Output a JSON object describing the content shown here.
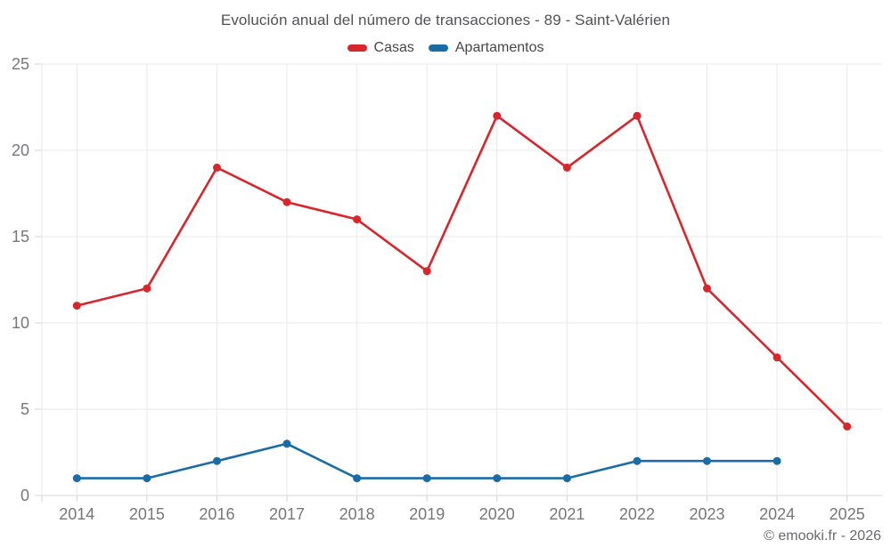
{
  "chart_data": {
    "type": "line",
    "title": "Evolución anual del número de transacciones - 89 - Saint-Valérien",
    "categories": [
      "2014",
      "2015",
      "2016",
      "2017",
      "2018",
      "2019",
      "2020",
      "2021",
      "2022",
      "2023",
      "2024",
      "2025"
    ],
    "series": [
      {
        "name": "Casas",
        "color": "#d8262d",
        "values": [
          11,
          12,
          19,
          17,
          16,
          13,
          22,
          19,
          22,
          12,
          8,
          4
        ]
      },
      {
        "name": "Apartamentos",
        "color": "#1a6ca4",
        "values": [
          1,
          1,
          2,
          3,
          1,
          1,
          1,
          1,
          2,
          2,
          2,
          null
        ]
      }
    ],
    "xlabel": "",
    "ylabel": "",
    "ylim": [
      0,
      25
    ],
    "ytick_step": 5,
    "yticks": [
      0,
      5,
      10,
      15,
      20,
      25
    ],
    "grid": true,
    "legend_position": "top",
    "marker": "circle"
  },
  "footer": {
    "credit": "© emooki.fr - 2026"
  },
  "style": {
    "background": "#ffffff",
    "grid_color": "#e9e9e9",
    "axis_color": "#d4d4d4",
    "axis_label_color": "#77777b",
    "title_color": "#525256",
    "legend_text_color": "#47474b",
    "credit_color": "#69696d"
  }
}
